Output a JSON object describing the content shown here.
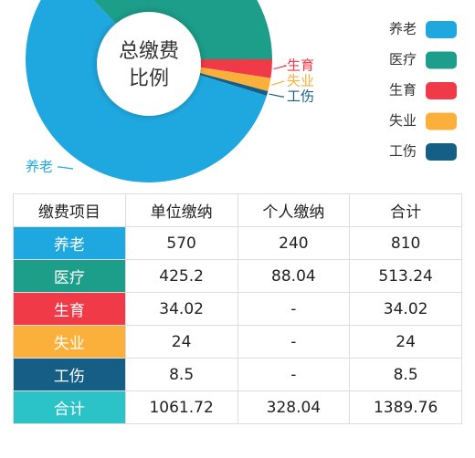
{
  "chart_data": {
    "type": "donut",
    "center_text": [
      "总缴费",
      "比例"
    ],
    "categories": [
      "养老",
      "医疗",
      "生育",
      "失业",
      "工伤"
    ],
    "values": [
      810,
      513.24,
      34.02,
      24,
      8.5
    ],
    "colors": [
      "#1fa8e0",
      "#1c9e8a",
      "#f03a48",
      "#fbb03b",
      "#155e85"
    ],
    "legend": "right"
  },
  "table": {
    "header": [
      "缴费项目",
      "单位缴纳",
      "个人缴纳",
      "合计"
    ],
    "rows": [
      [
        "养老",
        "570",
        "240",
        "810"
      ],
      [
        "医疗",
        "425.2",
        "88.04",
        "513.24"
      ],
      [
        "生育",
        "34.02",
        "-",
        "34.02"
      ],
      [
        "失业",
        "24",
        "-",
        "24"
      ],
      [
        "工伤",
        "8.5",
        "-",
        "8.5"
      ],
      [
        "合计",
        "1061.72",
        "328.04",
        "1389.76"
      ]
    ],
    "row_colors": [
      "#1fa8e0",
      "#1c9e8a",
      "#f03a48",
      "#fbb03b",
      "#155e85",
      "#2bc3c7"
    ]
  }
}
